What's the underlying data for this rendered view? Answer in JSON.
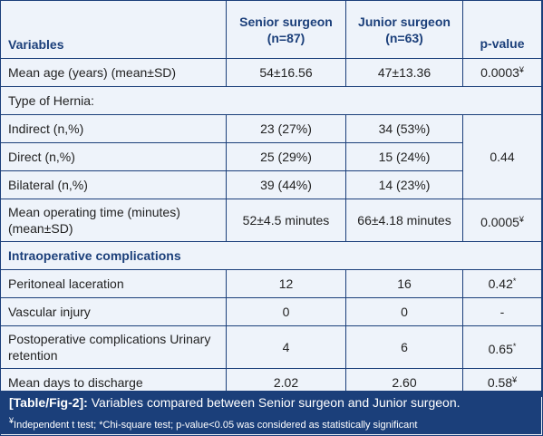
{
  "table": {
    "headers": {
      "variables": "Variables",
      "senior": "Senior surgeon (n=87)",
      "junior": "Junior surgeon (n=63)",
      "pvalue": "p-value"
    },
    "rows": {
      "mean_age": {
        "label": "Mean age (years) (mean±SD)",
        "senior": "54±16.56",
        "junior": "47±13.36",
        "p": "0.0003",
        "p_mark": "¥"
      },
      "type_hernia": {
        "label": "Type of Hernia:"
      },
      "indirect": {
        "label": "Indirect (n,%)",
        "senior": "23 (27%)",
        "junior": "34 (53%)"
      },
      "direct": {
        "label": "Direct (n,%)",
        "senior": "25 (29%)",
        "junior": "15 (24%)"
      },
      "bilateral": {
        "label": "Bilateral (n,%)",
        "senior": "39 (44%)",
        "junior": "14 (23%)"
      },
      "hernia_p": "0.44",
      "op_time": {
        "label": "Mean operating time (minutes) (mean±SD)",
        "senior": "52±4.5 minutes",
        "junior": "66±4.18 minutes",
        "p": "0.0005",
        "p_mark": "¥"
      },
      "intraop": {
        "label": "Intraoperative complications"
      },
      "peritoneal": {
        "label": "Peritoneal laceration",
        "senior": "12",
        "junior": "16",
        "p": "0.42",
        "p_mark": "*"
      },
      "vascular": {
        "label": "Vascular injury",
        "senior": "0",
        "junior": "0",
        "p": "-"
      },
      "postop": {
        "label": "Postoperative complications Urinary retention",
        "senior": "4",
        "junior": "6",
        "p": "0.65",
        "p_mark": "*"
      },
      "discharge": {
        "label": "Mean days to discharge",
        "senior": "2.02",
        "junior": "2.60",
        "p": "0.58",
        "p_mark": "¥"
      }
    }
  },
  "caption": {
    "tag": "[Table/Fig-2]:",
    "text": " Variables compared between Senior surgeon and Junior surgeon.",
    "footnote_mark": "¥",
    "footnote": "Independent t test; *Chi-square test; p-value<0.05 was considered as statistically significant"
  },
  "colors": {
    "accent": "#1b3f7a",
    "background": "#eef3fa",
    "caption_text": "#ffffff"
  }
}
